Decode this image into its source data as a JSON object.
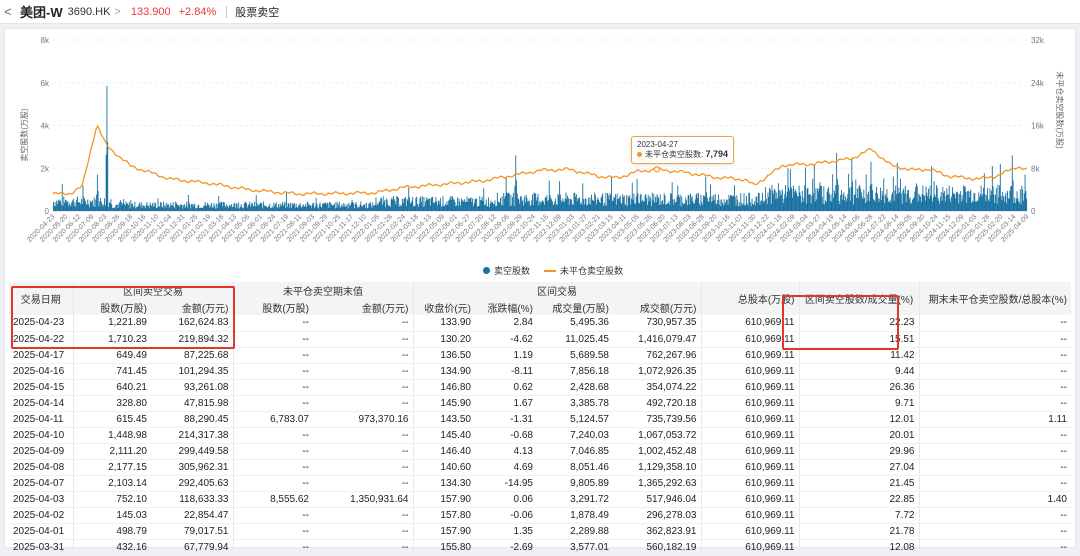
{
  "header": {
    "back": "<",
    "name": "美团-W",
    "code": "3690.HK",
    "chevron": ">",
    "price": "133.900",
    "change": "+2.84%",
    "tab": "股票卖空"
  },
  "colors": {
    "bar": "#17709f",
    "line": "#f39423",
    "up": "#e33333",
    "highlight": "#e5352b"
  },
  "chart_data": {
    "type": "bar",
    "left_axis_label": "卖空股数(万股)",
    "right_axis_label": "未平仓卖空股数(万股)",
    "left_ticks": [
      "0",
      "2k",
      "4k",
      "6k",
      "8k"
    ],
    "right_ticks": [
      "0",
      "8k",
      "16k",
      "24k",
      "32k"
    ],
    "ylim_left": [
      0,
      8000
    ],
    "ylim_right": [
      0,
      32000
    ],
    "x_labels": [
      "2020-04-23",
      "2020-05-20",
      "2020-06-12",
      "2020-07-09",
      "2020-08-03",
      "2020-08-26",
      "2020-09-18",
      "2020-10-16",
      "2020-11-10",
      "2020-12-04",
      "2020-12-31",
      "2021-01-25",
      "2021-02-19",
      "2021-03-16",
      "2021-04-13",
      "2021-05-06",
      "2021-06-01",
      "2021-06-24",
      "2021-07-19",
      "2021-08-11",
      "2021-09-03",
      "2021-09-29",
      "2021-10-25",
      "2021-11-17",
      "2021-12-10",
      "2022-01-05",
      "2022-01-28",
      "2022-02-24",
      "2022-03-18",
      "2022-04-13",
      "2022-05-09",
      "2022-06-01",
      "2022-06-27",
      "2022-07-20",
      "2022-08-12",
      "2022-09-06",
      "2022-09-29",
      "2022-10-24",
      "2022-11-16",
      "2022-12-09",
      "2023-01-03",
      "2023-01-27",
      "2023-02-21",
      "2023-03-15",
      "2023-04-11",
      "2023-05-05",
      "2023-05-26",
      "2023-06-20",
      "2023-07-13",
      "2023-08-03",
      "2023-08-28",
      "2023-09-20",
      "2023-10-16",
      "2023-11-07",
      "2023-11-30",
      "2023-12-22",
      "2024-01-18",
      "2024-02-09",
      "2024-03-04",
      "2024-03-27",
      "2024-04-19",
      "2024-05-14",
      "2024-06-06",
      "2024-06-28",
      "2024-07-22",
      "2024-08-14",
      "2024-09-05",
      "2024-09-30",
      "2024-10-24",
      "2024-11-15",
      "2024-12-09",
      "2025-01-03",
      "2025-01-28",
      "2025-02-20",
      "2025-03-14",
      "2025-04-09"
    ],
    "line_keypoints": [
      [
        0,
        3200
      ],
      [
        0.018,
        3300
      ],
      [
        0.03,
        4600
      ],
      [
        0.045,
        16200
      ],
      [
        0.055,
        12200
      ],
      [
        0.08,
        8400
      ],
      [
        0.12,
        6000
      ],
      [
        0.16,
        5200
      ],
      [
        0.2,
        4000
      ],
      [
        0.25,
        3200
      ],
      [
        0.3,
        3300
      ],
      [
        0.33,
        3400
      ],
      [
        0.36,
        4400
      ],
      [
        0.4,
        5000
      ],
      [
        0.44,
        5600
      ],
      [
        0.47,
        6600
      ],
      [
        0.5,
        7600
      ],
      [
        0.53,
        7800
      ],
      [
        0.56,
        6500
      ],
      [
        0.58,
        6200
      ],
      [
        0.6,
        7400
      ],
      [
        0.62,
        7794
      ],
      [
        0.65,
        7200
      ],
      [
        0.68,
        6300
      ],
      [
        0.71,
        5900
      ],
      [
        0.72,
        4800
      ],
      [
        0.75,
        8600
      ],
      [
        0.78,
        8800
      ],
      [
        0.8,
        9300
      ],
      [
        0.82,
        9800
      ],
      [
        0.84,
        11600
      ],
      [
        0.86,
        8600
      ],
      [
        0.88,
        7700
      ],
      [
        0.9,
        7800
      ],
      [
        0.92,
        6500
      ],
      [
        0.95,
        6000
      ],
      [
        0.97,
        6600
      ],
      [
        0.99,
        8300
      ],
      [
        1,
        7700
      ]
    ],
    "bar_spikes": [
      [
        0.055,
        5850
      ],
      [
        0.045,
        1700
      ],
      [
        0.17,
        700
      ],
      [
        0.365,
        1100
      ],
      [
        0.465,
        1550
      ],
      [
        0.475,
        2600
      ],
      [
        0.52,
        1400
      ],
      [
        0.6,
        1500
      ],
      [
        0.67,
        1600
      ],
      [
        0.7,
        1200
      ],
      [
        0.745,
        1300
      ],
      [
        0.755,
        2000
      ],
      [
        0.78,
        1500
      ],
      [
        0.805,
        2700
      ],
      [
        0.82,
        2500
      ],
      [
        0.84,
        2300
      ],
      [
        0.87,
        1500
      ],
      [
        0.905,
        1400
      ],
      [
        0.935,
        1200
      ],
      [
        0.965,
        2100
      ],
      [
        0.985,
        2600
      ],
      [
        0.998,
        1700
      ]
    ],
    "tooltip": {
      "date": "2023-04-27",
      "label": "未平仓卖空股数:",
      "value": "7,794"
    },
    "legend": [
      {
        "name": "卖空股数",
        "color": "#17709f"
      },
      {
        "name": "未平仓卖空股数",
        "color": "#f39423"
      }
    ]
  },
  "table": {
    "group_headers": [
      "区间卖空交易",
      "未平仓卖空期末值",
      "区间交易",
      "总股本(万股)",
      "区间卖空股数/成交量(%)",
      "期末未平仓卖空股数/总股本(%)"
    ],
    "col_headers": [
      "交易日期",
      "股数(万股)",
      "金额(万元)",
      "股数(万股)",
      "金额(万元)",
      "收盘价(元)",
      "涨跌幅(%)",
      "成交量(万股)",
      "成交额(万元)"
    ],
    "rows": [
      [
        "2025-04-23",
        "1,221.89",
        "162,624.83",
        "--",
        "--",
        "133.90",
        "2.84",
        "5,495.36",
        "730,957.35",
        "610,969.11",
        "22.23",
        "--"
      ],
      [
        "2025-04-22",
        "1,710.23",
        "219,894.32",
        "--",
        "--",
        "130.20",
        "-4.62",
        "11,025.45",
        "1,416,079.47",
        "610,969.11",
        "15.51",
        "--"
      ],
      [
        "2025-04-17",
        "649.49",
        "87,225.68",
        "--",
        "--",
        "136.50",
        "1.19",
        "5,689.58",
        "762,267.96",
        "610,969.11",
        "11.42",
        "--"
      ],
      [
        "2025-04-16",
        "741.45",
        "101,294.35",
        "--",
        "--",
        "134.90",
        "-8.11",
        "7,856.18",
        "1,072,926.35",
        "610,969.11",
        "9.44",
        "--"
      ],
      [
        "2025-04-15",
        "640.21",
        "93,261.08",
        "--",
        "--",
        "146.80",
        "0.62",
        "2,428.68",
        "354,074.22",
        "610,969.11",
        "26.36",
        "--"
      ],
      [
        "2025-04-14",
        "328.80",
        "47,815.98",
        "--",
        "--",
        "145.90",
        "1.67",
        "3,385.78",
        "492,720.18",
        "610,969.11",
        "9.71",
        "--"
      ],
      [
        "2025-04-11",
        "615.45",
        "88,290.45",
        "6,783.07",
        "973,370.16",
        "143.50",
        "-1.31",
        "5,124.57",
        "735,739.56",
        "610,969.11",
        "12.01",
        "1.11"
      ],
      [
        "2025-04-10",
        "1,448.98",
        "214,317.38",
        "--",
        "--",
        "145.40",
        "-0.68",
        "7,240.03",
        "1,067,053.72",
        "610,969.11",
        "20.01",
        "--"
      ],
      [
        "2025-04-09",
        "2,111.20",
        "299,449.58",
        "--",
        "--",
        "146.40",
        "4.13",
        "7,046.85",
        "1,002,452.48",
        "610,969.11",
        "29.96",
        "--"
      ],
      [
        "2025-04-08",
        "2,177.15",
        "305,962.31",
        "--",
        "--",
        "140.60",
        "4.69",
        "8,051.46",
        "1,129,358.10",
        "610,969.11",
        "27.04",
        "--"
      ],
      [
        "2025-04-07",
        "2,103.14",
        "292,405.63",
        "--",
        "--",
        "134.30",
        "-14.95",
        "9,805.89",
        "1,365,292.63",
        "610,969.11",
        "21.45",
        "--"
      ],
      [
        "2025-04-03",
        "752.10",
        "118,633.33",
        "8,555.62",
        "1,350,931.64",
        "157.90",
        "0.06",
        "3,291.72",
        "517,946.04",
        "610,969.11",
        "22.85",
        "1.40"
      ],
      [
        "2025-04-02",
        "145.03",
        "22,854.47",
        "--",
        "--",
        "157.80",
        "-0.06",
        "1,878.49",
        "296,278.03",
        "610,969.11",
        "7.72",
        "--"
      ],
      [
        "2025-04-01",
        "498.79",
        "79,017.51",
        "--",
        "--",
        "157.90",
        "1.35",
        "2,289.88",
        "362,823.91",
        "610,969.11",
        "21.78",
        "--"
      ],
      [
        "2025-03-31",
        "432.16",
        "67,779.94",
        "--",
        "--",
        "155.80",
        "-2.69",
        "3,577.01",
        "560,182.19",
        "610,969.11",
        "12.08",
        "--"
      ]
    ]
  }
}
